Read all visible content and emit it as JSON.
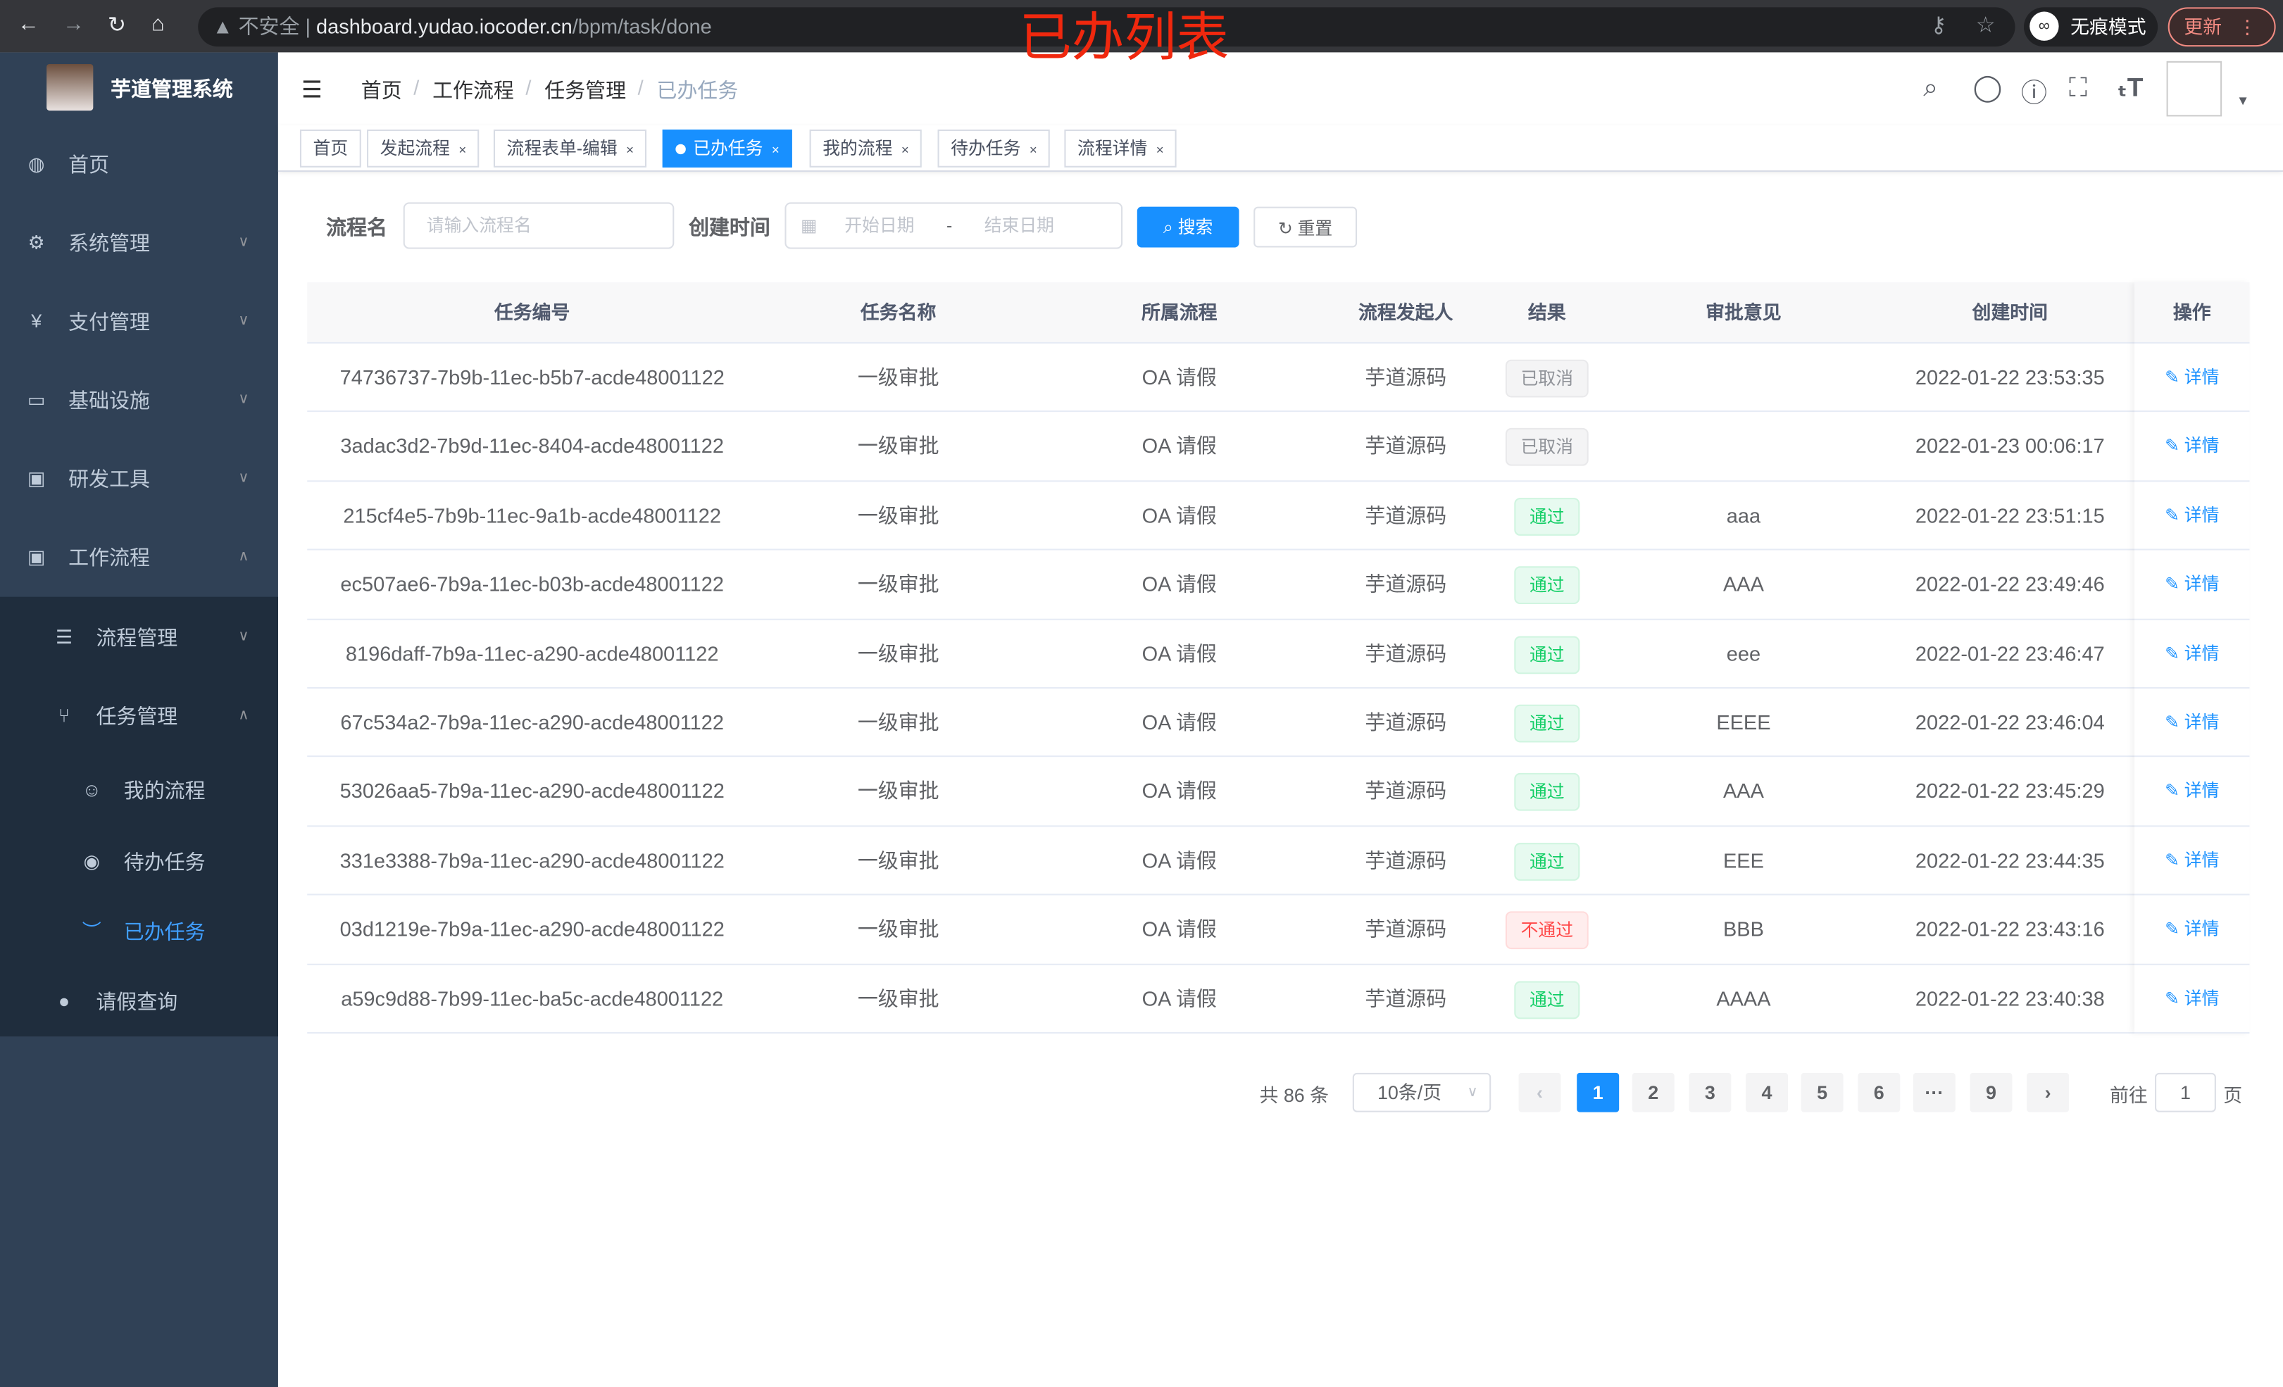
{
  "browser": {
    "security": "不安全",
    "url_host": "dashboard.yudao.iocoder.cn",
    "url_path": "/bpm/task/done",
    "incognito": "无痕模式",
    "update": "更新"
  },
  "overlay_title": "已办列表",
  "sidebar": {
    "title": "芋道管理系统",
    "items": [
      {
        "label": "首页",
        "icon": "dashboard-icon"
      },
      {
        "label": "系统管理",
        "icon": "gear-icon"
      },
      {
        "label": "支付管理",
        "icon": "yen-icon"
      },
      {
        "label": "基础设施",
        "icon": "monitor-icon"
      },
      {
        "label": "研发工具",
        "icon": "toolbox-icon"
      },
      {
        "label": "工作流程",
        "icon": "toolbox-icon"
      },
      {
        "label": "流程管理",
        "icon": "list-icon"
      },
      {
        "label": "任务管理",
        "icon": "tree-icon"
      },
      {
        "label": "我的流程",
        "icon": "people-icon"
      },
      {
        "label": "待办任务",
        "icon": "eye-icon"
      },
      {
        "label": "已办任务",
        "icon": "eye-closed-icon"
      },
      {
        "label": "请假查询",
        "icon": "user-icon"
      }
    ]
  },
  "breadcrumb": [
    "首页",
    "工作流程",
    "任务管理",
    "已办任务"
  ],
  "tags": [
    "首页",
    "发起流程",
    "流程表单-编辑",
    "已办任务",
    "我的流程",
    "待办任务",
    "流程详情"
  ],
  "search": {
    "name_label": "流程名",
    "name_placeholder": "请输入流程名",
    "time_label": "创建时间",
    "start_placeholder": "开始日期",
    "range_sep": "-",
    "end_placeholder": "结束日期",
    "search_btn": "搜索",
    "reset_btn": "重置"
  },
  "table": {
    "headers": [
      "任务编号",
      "任务名称",
      "所属流程",
      "流程发起人",
      "结果",
      "审批意见",
      "创建时间",
      "操作"
    ],
    "action_label": "详情",
    "rows": [
      {
        "id": "74736737-7b9b-11ec-b5b7-acde48001122",
        "name": "一级审批",
        "process": "OA 请假",
        "starter": "芋道源码",
        "result": "已取消",
        "status": "cancel",
        "comment": "",
        "time": "2022-01-22 23:53:35"
      },
      {
        "id": "3adac3d2-7b9d-11ec-8404-acde48001122",
        "name": "一级审批",
        "process": "OA 请假",
        "starter": "芋道源码",
        "result": "已取消",
        "status": "cancel",
        "comment": "",
        "time": "2022-01-23 00:06:17"
      },
      {
        "id": "215cf4e5-7b9b-11ec-9a1b-acde48001122",
        "name": "一级审批",
        "process": "OA 请假",
        "starter": "芋道源码",
        "result": "通过",
        "status": "pass",
        "comment": "aaa",
        "time": "2022-01-22 23:51:15"
      },
      {
        "id": "ec507ae6-7b9a-11ec-b03b-acde48001122",
        "name": "一级审批",
        "process": "OA 请假",
        "starter": "芋道源码",
        "result": "通过",
        "status": "pass",
        "comment": "AAA",
        "time": "2022-01-22 23:49:46"
      },
      {
        "id": "8196daff-7b9a-11ec-a290-acde48001122",
        "name": "一级审批",
        "process": "OA 请假",
        "starter": "芋道源码",
        "result": "通过",
        "status": "pass",
        "comment": "eee",
        "time": "2022-01-22 23:46:47"
      },
      {
        "id": "67c534a2-7b9a-11ec-a290-acde48001122",
        "name": "一级审批",
        "process": "OA 请假",
        "starter": "芋道源码",
        "result": "通过",
        "status": "pass",
        "comment": "EEEE",
        "time": "2022-01-22 23:46:04"
      },
      {
        "id": "53026aa5-7b9a-11ec-a290-acde48001122",
        "name": "一级审批",
        "process": "OA 请假",
        "starter": "芋道源码",
        "result": "通过",
        "status": "pass",
        "comment": "AAA",
        "time": "2022-01-22 23:45:29"
      },
      {
        "id": "331e3388-7b9a-11ec-a290-acde48001122",
        "name": "一级审批",
        "process": "OA 请假",
        "starter": "芋道源码",
        "result": "通过",
        "status": "pass",
        "comment": "EEE",
        "time": "2022-01-22 23:44:35"
      },
      {
        "id": "03d1219e-7b9a-11ec-a290-acde48001122",
        "name": "一级审批",
        "process": "OA 请假",
        "starter": "芋道源码",
        "result": "不通过",
        "status": "fail",
        "comment": "BBB",
        "time": "2022-01-22 23:43:16"
      },
      {
        "id": "a59c9d88-7b99-11ec-ba5c-acde48001122",
        "name": "一级审批",
        "process": "OA 请假",
        "starter": "芋道源码",
        "result": "通过",
        "status": "pass",
        "comment": "AAAA",
        "time": "2022-01-22 23:40:38"
      }
    ]
  },
  "pagination": {
    "total": "共 86 条",
    "page_size": "10条/页",
    "pages": [
      "1",
      "2",
      "3",
      "4",
      "5",
      "6",
      "···",
      "9"
    ],
    "current": "1",
    "goto_label": "前往",
    "goto_value": "1",
    "goto_suffix": "页"
  },
  "colors": {
    "primary": "#1890ff",
    "sidebar": "#304156",
    "submenu": "#1f2d3d",
    "active_menu": "#409eff",
    "overlay": "#f0280e"
  }
}
